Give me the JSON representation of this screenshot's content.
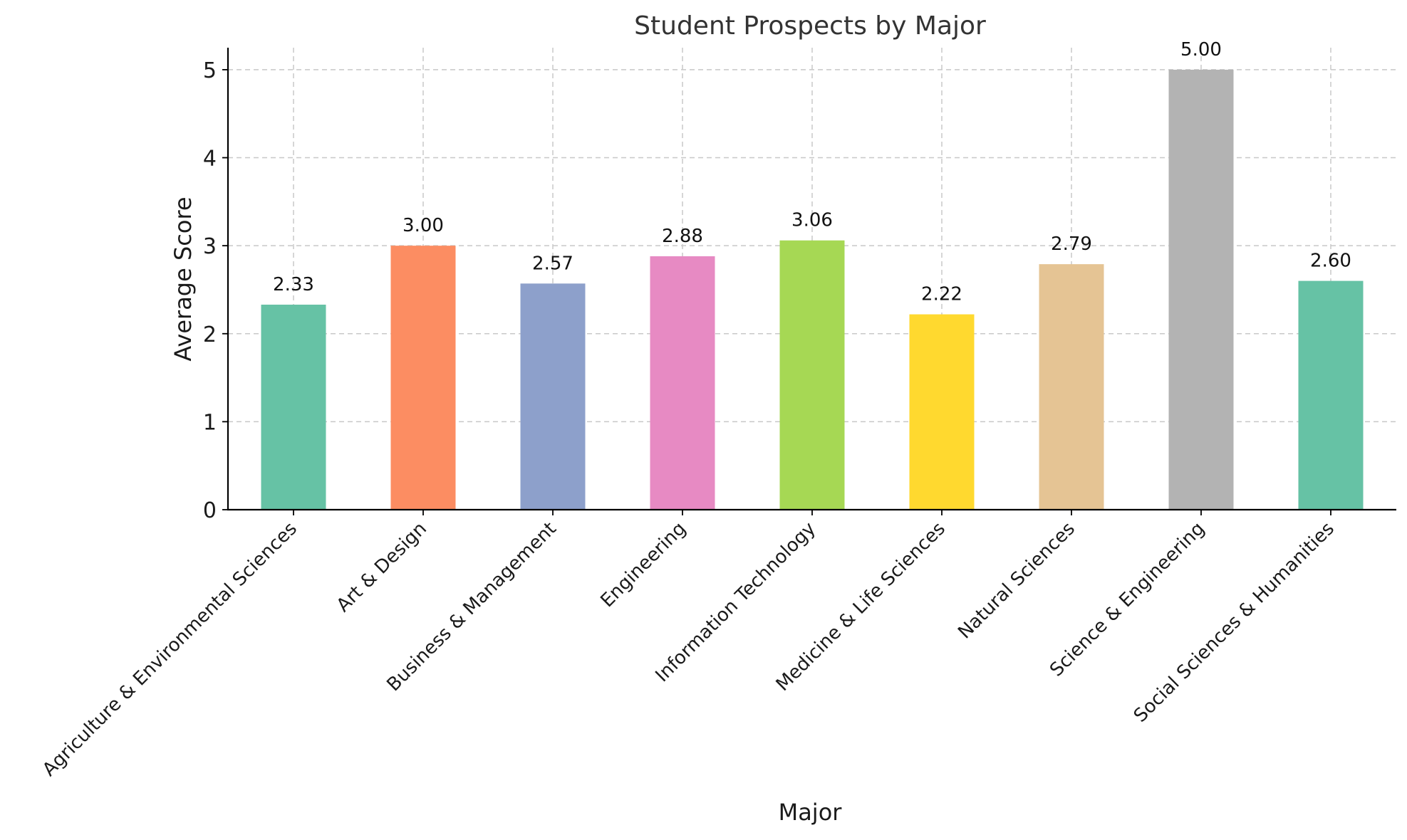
{
  "chart_data": {
    "type": "bar",
    "title": "Student Prospects by Major",
    "xlabel": "Major",
    "ylabel": "Average Score",
    "categories": [
      "Agriculture & Environmental Sciences",
      "Art & Design",
      "Business & Management",
      "Engineering",
      "Information Technology",
      "Medicine & Life Sciences",
      "Natural Sciences",
      "Science & Engineering",
      "Social Sciences & Humanities"
    ],
    "values": [
      2.33,
      3.0,
      2.57,
      2.88,
      3.06,
      2.22,
      2.79,
      5.0,
      2.6
    ],
    "value_labels": [
      "2.33",
      "3.00",
      "2.57",
      "2.88",
      "3.06",
      "2.22",
      "2.79",
      "5.00",
      "2.60"
    ],
    "colors": [
      "#66c2a5",
      "#fc8d62",
      "#8da0cb",
      "#e78ac3",
      "#a6d854",
      "#ffd92f",
      "#e5c494",
      "#b3b3b3",
      "#66c2a5"
    ],
    "ylim": [
      0,
      5.25
    ],
    "yticks": [
      "0",
      "1",
      "2",
      "3",
      "4",
      "5"
    ],
    "grid": true
  }
}
